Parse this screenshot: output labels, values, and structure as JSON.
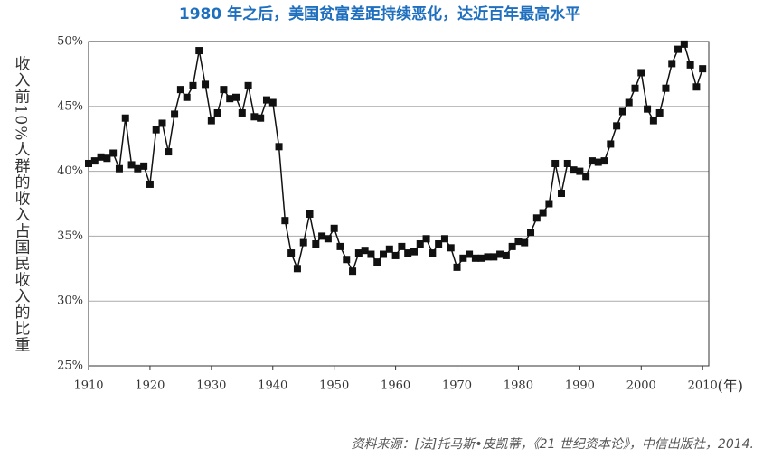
{
  "chart_data": {
    "type": "line",
    "title": "1980 年之后，美国贫富差距持续恶化，达近百年最高水平",
    "y_label": "收入前10%人群的收入占国民收入的比重",
    "x_label": "(年)",
    "source": "资料来源：[法]托马斯•皮凯蒂，《21 世纪资本论》，中信出版社，2014.",
    "x": [
      1910,
      1911,
      1912,
      1913,
      1914,
      1915,
      1916,
      1917,
      1918,
      1919,
      1920,
      1921,
      1922,
      1923,
      1924,
      1925,
      1926,
      1927,
      1928,
      1929,
      1930,
      1931,
      1932,
      1933,
      1934,
      1935,
      1936,
      1937,
      1938,
      1939,
      1940,
      1941,
      1942,
      1943,
      1944,
      1945,
      1946,
      1947,
      1948,
      1949,
      1950,
      1951,
      1952,
      1953,
      1954,
      1955,
      1956,
      1957,
      1958,
      1959,
      1960,
      1961,
      1962,
      1963,
      1964,
      1965,
      1966,
      1967,
      1968,
      1969,
      1970,
      1971,
      1972,
      1973,
      1974,
      1975,
      1976,
      1977,
      1978,
      1979,
      1980,
      1981,
      1982,
      1983,
      1984,
      1985,
      1986,
      1987,
      1988,
      1989,
      1990,
      1991,
      1992,
      1993,
      1994,
      1995,
      1996,
      1997,
      1998,
      1999,
      2000,
      2001,
      2002,
      2003,
      2004,
      2005,
      2006,
      2007,
      2008,
      2009,
      2010
    ],
    "series": [
      {
        "color": "#111111",
        "values": [
          40.6,
          40.8,
          41.1,
          41.0,
          41.4,
          40.2,
          44.1,
          40.5,
          40.2,
          40.4,
          39.0,
          43.2,
          43.7,
          41.5,
          44.4,
          46.3,
          45.7,
          46.6,
          49.3,
          46.7,
          43.9,
          44.5,
          46.3,
          45.6,
          45.7,
          44.5,
          46.6,
          44.2,
          44.1,
          45.5,
          45.3,
          41.9,
          36.2,
          33.7,
          32.5,
          34.5,
          36.7,
          34.4,
          35.0,
          34.8,
          35.6,
          34.2,
          33.2,
          32.3,
          33.7,
          33.9,
          33.6,
          33.0,
          33.6,
          34.0,
          33.5,
          34.2,
          33.7,
          33.8,
          34.4,
          34.8,
          33.7,
          34.4,
          34.8,
          34.1,
          32.6,
          33.3,
          33.6,
          33.3,
          33.3,
          33.4,
          33.4,
          33.6,
          33.5,
          34.2,
          34.6,
          34.5,
          35.3,
          36.4,
          36.8,
          37.5,
          40.6,
          38.3,
          40.6,
          40.1,
          40.0,
          39.6,
          40.8,
          40.7,
          40.8,
          42.1,
          43.5,
          44.6,
          45.3,
          46.4,
          47.6,
          44.8,
          43.9,
          44.5,
          46.4,
          48.3,
          49.4,
          49.8,
          48.2,
          46.5,
          47.9
        ]
      }
    ],
    "xlim": [
      1910,
      2011
    ],
    "xticks": [
      1910,
      1920,
      1930,
      1940,
      1950,
      1960,
      1970,
      1980,
      1990,
      2000,
      2010
    ],
    "ylim": [
      25,
      50
    ],
    "yticks": [
      {
        "value": 25,
        "label": "25%"
      },
      {
        "value": 30,
        "label": "30%"
      },
      {
        "value": 35,
        "label": "35%"
      },
      {
        "value": 40,
        "label": "40%"
      },
      {
        "value": 45,
        "label": "45%"
      },
      {
        "value": 50,
        "label": "50%"
      }
    ],
    "grid": true
  }
}
